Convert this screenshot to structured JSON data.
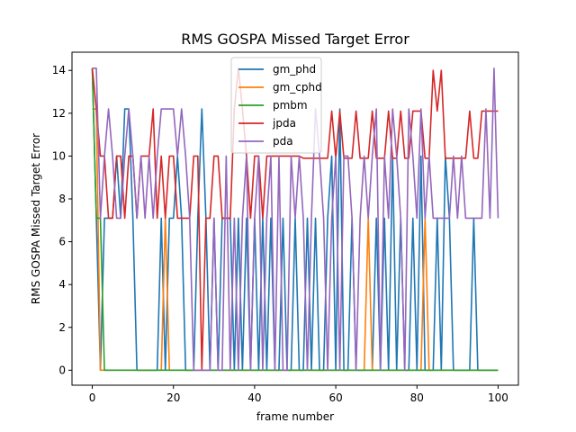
{
  "chart_data": {
    "type": "line",
    "title": "RMS GOSPA Missed Target Error",
    "xlabel": "frame number",
    "ylabel": "RMS GOSPA Missed Target Error",
    "xlim": [
      -5,
      105
    ],
    "ylim": [
      -0.7,
      14.85
    ],
    "xticks": [
      0,
      20,
      40,
      60,
      80,
      100
    ],
    "yticks": [
      0,
      2,
      4,
      6,
      8,
      10,
      12,
      14
    ],
    "grid": false,
    "legend_position": "top-center",
    "x": [
      0,
      1,
      2,
      3,
      4,
      5,
      6,
      7,
      8,
      9,
      10,
      11,
      12,
      13,
      14,
      15,
      16,
      17,
      18,
      19,
      20,
      21,
      22,
      23,
      24,
      25,
      26,
      27,
      28,
      29,
      30,
      31,
      32,
      33,
      34,
      35,
      36,
      37,
      38,
      39,
      40,
      41,
      42,
      43,
      44,
      45,
      46,
      47,
      48,
      49,
      50,
      51,
      52,
      53,
      54,
      55,
      56,
      57,
      58,
      59,
      60,
      61,
      62,
      63,
      64,
      65,
      66,
      67,
      68,
      69,
      70,
      71,
      72,
      73,
      74,
      75,
      76,
      77,
      78,
      79,
      80,
      81,
      82,
      83,
      84,
      85,
      86,
      87,
      88,
      89,
      90,
      91,
      92,
      93,
      94,
      95,
      96,
      97,
      98,
      99,
      100
    ],
    "series": [
      {
        "name": "gm_phd",
        "color": "#1f77b4",
        "values": [
          14.1,
          7.1,
          0,
          7.1,
          7.1,
          7.1,
          10,
          7.1,
          12.2,
          12.2,
          7.1,
          0,
          0,
          0,
          0,
          0,
          0,
          7.1,
          0,
          7.1,
          7.1,
          10,
          7.1,
          0,
          0,
          0,
          7.1,
          12.2,
          7.1,
          0,
          7.1,
          0,
          7.1,
          7.1,
          7.1,
          0,
          7.1,
          0,
          7.1,
          0,
          7.1,
          0,
          7.1,
          0,
          7.1,
          0,
          0,
          7.1,
          0,
          0,
          7.1,
          0,
          0,
          7.1,
          0,
          7.1,
          0,
          0,
          7.1,
          10,
          0,
          12.2,
          0,
          0,
          7.1,
          0,
          0,
          0,
          0,
          0,
          7.1,
          0,
          7.1,
          0,
          10,
          0,
          7.1,
          0,
          0,
          7.1,
          0,
          10,
          0,
          0,
          0,
          7.1,
          0,
          10,
          7.1,
          0,
          0,
          0,
          0,
          0,
          7.1,
          0,
          0,
          0,
          0,
          0,
          0
        ]
      },
      {
        "name": "gm_cphd",
        "color": "#ff7f0e",
        "values": [
          12.2,
          12.2,
          0,
          0,
          0,
          0,
          0,
          0,
          0,
          0,
          0,
          0,
          0,
          0,
          0,
          0,
          0,
          0,
          7.1,
          0,
          0,
          0,
          0,
          0,
          0,
          0,
          0,
          0,
          0,
          0,
          0,
          0,
          0,
          0,
          0,
          0,
          0,
          0,
          0,
          0,
          0,
          0,
          0,
          0,
          0,
          0,
          0,
          0,
          0,
          0,
          0,
          0,
          0,
          0,
          0,
          0,
          0,
          0,
          0,
          0,
          0,
          0,
          0,
          0,
          0,
          0,
          0,
          0,
          7.1,
          0,
          0,
          0,
          0,
          0,
          0,
          0,
          0,
          0,
          0,
          0,
          0,
          0,
          7.1,
          0,
          0,
          0,
          0,
          0,
          0,
          0,
          0,
          0,
          0,
          0,
          0,
          0,
          0,
          0,
          0,
          0,
          0
        ]
      },
      {
        "name": "pmbm",
        "color": "#2ca02c",
        "values": [
          14.1,
          7.1,
          7.1,
          0,
          0,
          0,
          0,
          0,
          0,
          0,
          0,
          0,
          0,
          0,
          0,
          0,
          0,
          0,
          0,
          0,
          0,
          0,
          0,
          0,
          0,
          0,
          0,
          0,
          0,
          0,
          0,
          0,
          0,
          0,
          0,
          0,
          0,
          0,
          0,
          0,
          0,
          0,
          0,
          0,
          0,
          0,
          0,
          0,
          0,
          0,
          0,
          0,
          0,
          0,
          0,
          0,
          0,
          0,
          0,
          0,
          0,
          0,
          0,
          0,
          0,
          0,
          0,
          0,
          0,
          0,
          0,
          0,
          0,
          0,
          0,
          0,
          0,
          0,
          0,
          0,
          0,
          0,
          0,
          0,
          0,
          0,
          0,
          0,
          0,
          0,
          0,
          0,
          0,
          0,
          0,
          0,
          0,
          0,
          0,
          0,
          0
        ]
      },
      {
        "name": "jpda",
        "color": "#d62728",
        "values": [
          14.1,
          12.2,
          10,
          10,
          7.1,
          7.1,
          10,
          10,
          7.1,
          10,
          10,
          7.1,
          10,
          10,
          10,
          12.2,
          7.1,
          10,
          7.1,
          10,
          10,
          7.1,
          7.1,
          7.1,
          7.1,
          10,
          10,
          0,
          7.1,
          7.1,
          10,
          10,
          7.1,
          7.1,
          7.1,
          12.2,
          14.1,
          12.2,
          10,
          7.1,
          10,
          10,
          7.1,
          10,
          10,
          10,
          10,
          10,
          10,
          10,
          10,
          10,
          9.9,
          9.9,
          9.9,
          9.9,
          9.9,
          9.9,
          9.9,
          12.1,
          9.9,
          12.1,
          9.9,
          9.9,
          9.9,
          12.1,
          9.9,
          9.9,
          9.9,
          12.1,
          9.9,
          9.9,
          9.9,
          12.1,
          9.9,
          9.9,
          12.1,
          9.9,
          9.9,
          12.1,
          12.1,
          12.1,
          9.9,
          9.9,
          14,
          12.1,
          14,
          9.9,
          9.9,
          9.9,
          9.9,
          9.9,
          9.9,
          12.1,
          9.9,
          9.9,
          12.1,
          12.1,
          12.1,
          12.1,
          12.1
        ]
      },
      {
        "name": "pda",
        "color": "#9467bd",
        "values": [
          14.1,
          14.1,
          7.1,
          10,
          12.2,
          10,
          7.1,
          7.1,
          10,
          12.2,
          10,
          7.1,
          10,
          7.1,
          10,
          7.1,
          10,
          12.2,
          12.2,
          12.2,
          12.2,
          10,
          12.2,
          10,
          7.1,
          0,
          0,
          0,
          0,
          0,
          7.1,
          0,
          0,
          10,
          0,
          7.1,
          0,
          7.1,
          10,
          0,
          7.1,
          10,
          0,
          7.1,
          10,
          0,
          10,
          0,
          0,
          10,
          7.1,
          10,
          7.1,
          0,
          7.1,
          12.2,
          10,
          7.1,
          0,
          7.1,
          10,
          0,
          10,
          10,
          7.1,
          0,
          7.1,
          10,
          7.1,
          10,
          12.2,
          0,
          10,
          7.1,
          12.2,
          10,
          7.1,
          0,
          12.2,
          10,
          7.1,
          12.2,
          7.1,
          10,
          7.1,
          7.1,
          7.1,
          7.1,
          7.1,
          10,
          7.1,
          10,
          7.1,
          7.1,
          7.1,
          7.1,
          7.1,
          12.2,
          7.1,
          14.1,
          7.1
        ]
      }
    ]
  }
}
